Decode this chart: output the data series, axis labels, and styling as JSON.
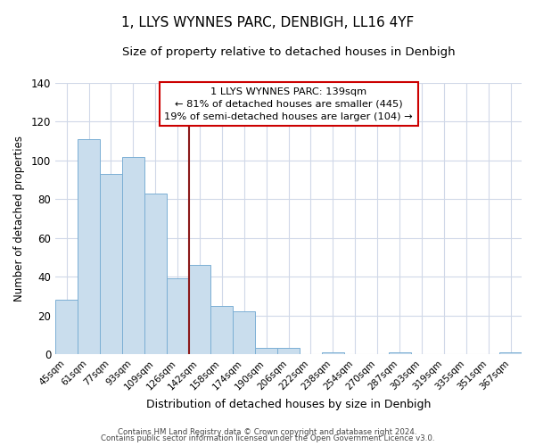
{
  "title": "1, LLYS WYNNES PARC, DENBIGH, LL16 4YF",
  "subtitle": "Size of property relative to detached houses in Denbigh",
  "xlabel": "Distribution of detached houses by size in Denbigh",
  "ylabel": "Number of detached properties",
  "categories": [
    "45sqm",
    "61sqm",
    "77sqm",
    "93sqm",
    "109sqm",
    "126sqm",
    "142sqm",
    "158sqm",
    "174sqm",
    "190sqm",
    "206sqm",
    "222sqm",
    "238sqm",
    "254sqm",
    "270sqm",
    "287sqm",
    "303sqm",
    "319sqm",
    "335sqm",
    "351sqm",
    "367sqm"
  ],
  "values": [
    28,
    111,
    93,
    102,
    83,
    39,
    46,
    25,
    22,
    3,
    3,
    0,
    1,
    0,
    0,
    1,
    0,
    0,
    0,
    0,
    1
  ],
  "bar_color": "#c9dded",
  "bar_edge_color": "#7bafd4",
  "vline_color": "#8b1a1a",
  "annotation_line1": "1 LLYS WYNNES PARC: 139sqm",
  "annotation_line2": "← 81% of detached houses are smaller (445)",
  "annotation_line3": "19% of semi-detached houses are larger (104) →",
  "annotation_box_facecolor": "#ffffff",
  "annotation_box_edgecolor": "#cc0000",
  "ylim": [
    0,
    140
  ],
  "yticks": [
    0,
    20,
    40,
    60,
    80,
    100,
    120,
    140
  ],
  "fig_bg": "#ffffff",
  "plot_bg": "#ffffff",
  "grid_color": "#d0d8e8",
  "title_fontsize": 11,
  "subtitle_fontsize": 9.5,
  "footer1": "Contains HM Land Registry data © Crown copyright and database right 2024.",
  "footer2": "Contains public sector information licensed under the Open Government Licence v3.0."
}
